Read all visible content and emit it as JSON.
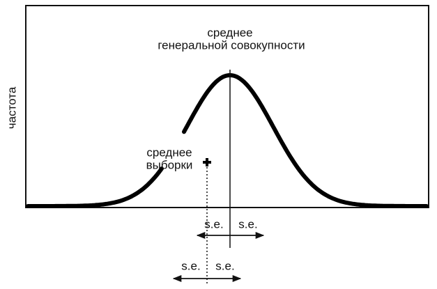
{
  "labels": {
    "y_axis": "частота",
    "population_mean": [
      "среднее",
      "генеральной совокупности"
    ],
    "sample_mean": [
      "среднее",
      "выборки"
    ],
    "se_top": [
      "s.e.",
      "s.e."
    ],
    "se_bottom": [
      "s.e.",
      "s.e."
    ]
  }
}
